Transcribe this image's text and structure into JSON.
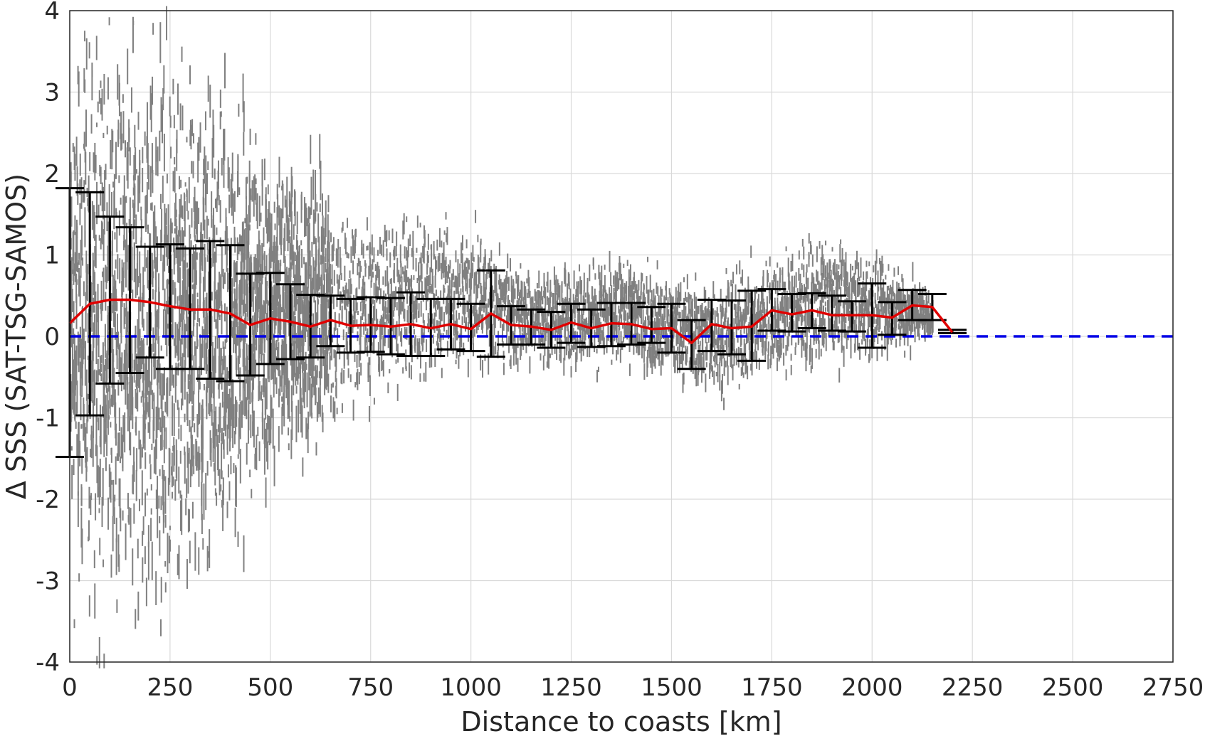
{
  "chart_data": {
    "type": "scatter",
    "title": "",
    "xlabel": "Distance to coasts [km]",
    "ylabel": "Δ SSS (SAT-TSG-SAMOS)",
    "xlim": [
      0,
      2750
    ],
    "ylim": [
      -4,
      4
    ],
    "grid": true,
    "x_ticks": [
      "0",
      "250",
      "500",
      "750",
      "1000",
      "1250",
      "1500",
      "1750",
      "2000",
      "2250",
      "2500",
      "2750"
    ],
    "y_ticks": [
      "4",
      "3",
      "2",
      "1",
      "0",
      "-1",
      "-2",
      "-3",
      "-4"
    ],
    "colors": {
      "scatter": "#808080",
      "mean_line": "#e00000",
      "error_bars": "#000000",
      "zero_line": "#0000e6",
      "grid": "#d9d9d9"
    },
    "scatter_envelope": [
      {
        "x": 0,
        "lo": -4.0,
        "hi": 4.0
      },
      {
        "x": 100,
        "lo": -4.0,
        "hi": 4.0
      },
      {
        "x": 200,
        "lo": -4.0,
        "hi": 4.0
      },
      {
        "x": 300,
        "lo": -3.2,
        "hi": 3.5
      },
      {
        "x": 400,
        "lo": -2.8,
        "hi": 3.1
      },
      {
        "x": 500,
        "lo": -1.9,
        "hi": 2.5
      },
      {
        "x": 600,
        "lo": -1.7,
        "hi": 2.4
      },
      {
        "x": 700,
        "lo": -1.0,
        "hi": 1.7
      },
      {
        "x": 800,
        "lo": -0.9,
        "hi": 1.6
      },
      {
        "x": 900,
        "lo": -0.7,
        "hi": 1.6
      },
      {
        "x": 1000,
        "lo": -0.5,
        "hi": 1.5
      },
      {
        "x": 1100,
        "lo": -0.45,
        "hi": 1.0
      },
      {
        "x": 1200,
        "lo": -0.45,
        "hi": 0.9
      },
      {
        "x": 1300,
        "lo": -0.45,
        "hi": 1.0
      },
      {
        "x": 1400,
        "lo": -0.45,
        "hi": 1.1
      },
      {
        "x": 1500,
        "lo": -0.6,
        "hi": 0.8
      },
      {
        "x": 1600,
        "lo": -0.8,
        "hi": 0.8
      },
      {
        "x": 1700,
        "lo": -0.7,
        "hi": 1.0
      },
      {
        "x": 1800,
        "lo": -0.5,
        "hi": 1.1
      },
      {
        "x": 1900,
        "lo": -0.4,
        "hi": 1.3
      },
      {
        "x": 2000,
        "lo": -0.4,
        "hi": 1.0
      },
      {
        "x": 2100,
        "lo": -0.2,
        "hi": 0.85
      },
      {
        "x": 2150,
        "lo": 0.0,
        "hi": 0.5
      }
    ],
    "series": [
      {
        "x": [
          0,
          50,
          100,
          150,
          200,
          250,
          300,
          350,
          400,
          450,
          500,
          550,
          600,
          650,
          700,
          750,
          800,
          850,
          900,
          950,
          1000,
          1050,
          1100,
          1150,
          1200,
          1250,
          1300,
          1350,
          1400,
          1450,
          1500,
          1550,
          1600,
          1650,
          1700,
          1750,
          1800,
          1850,
          1900,
          1950,
          2000,
          2050,
          2100,
          2150,
          2200
        ],
        "mean": [
          0.16,
          0.4,
          0.45,
          0.45,
          0.42,
          0.37,
          0.33,
          0.33,
          0.28,
          0.14,
          0.22,
          0.18,
          0.12,
          0.2,
          0.13,
          0.14,
          0.12,
          0.15,
          0.1,
          0.15,
          0.09,
          0.28,
          0.14,
          0.12,
          0.08,
          0.17,
          0.1,
          0.16,
          0.15,
          0.09,
          0.1,
          -0.08,
          0.15,
          0.1,
          0.12,
          0.32,
          0.27,
          0.32,
          0.26,
          0.26,
          0.26,
          0.23,
          0.38,
          0.36,
          0.05
        ],
        "lower": [
          -1.48,
          -0.97,
          -0.58,
          -0.45,
          -0.26,
          -0.4,
          -0.4,
          -0.52,
          -0.55,
          -0.48,
          -0.34,
          -0.28,
          -0.26,
          -0.12,
          -0.2,
          -0.19,
          -0.22,
          -0.24,
          -0.24,
          -0.16,
          -0.18,
          -0.25,
          -0.1,
          -0.1,
          -0.14,
          -0.08,
          -0.13,
          -0.12,
          -0.1,
          -0.08,
          -0.2,
          -0.4,
          -0.18,
          -0.22,
          -0.3,
          0.07,
          0.06,
          0.1,
          0.07,
          0.06,
          -0.14,
          0.02,
          0.2,
          0.2,
          0.04
        ],
        "upper": [
          1.82,
          1.77,
          1.47,
          1.34,
          1.1,
          1.13,
          1.08,
          1.17,
          1.12,
          0.77,
          0.78,
          0.64,
          0.51,
          0.5,
          0.46,
          0.48,
          0.47,
          0.54,
          0.46,
          0.46,
          0.4,
          0.81,
          0.37,
          0.33,
          0.3,
          0.4,
          0.33,
          0.41,
          0.41,
          0.36,
          0.4,
          0.2,
          0.45,
          0.44,
          0.56,
          0.58,
          0.52,
          0.53,
          0.5,
          0.43,
          0.65,
          0.42,
          0.57,
          0.52,
          0.08
        ]
      }
    ],
    "zero_line_y": 0
  }
}
